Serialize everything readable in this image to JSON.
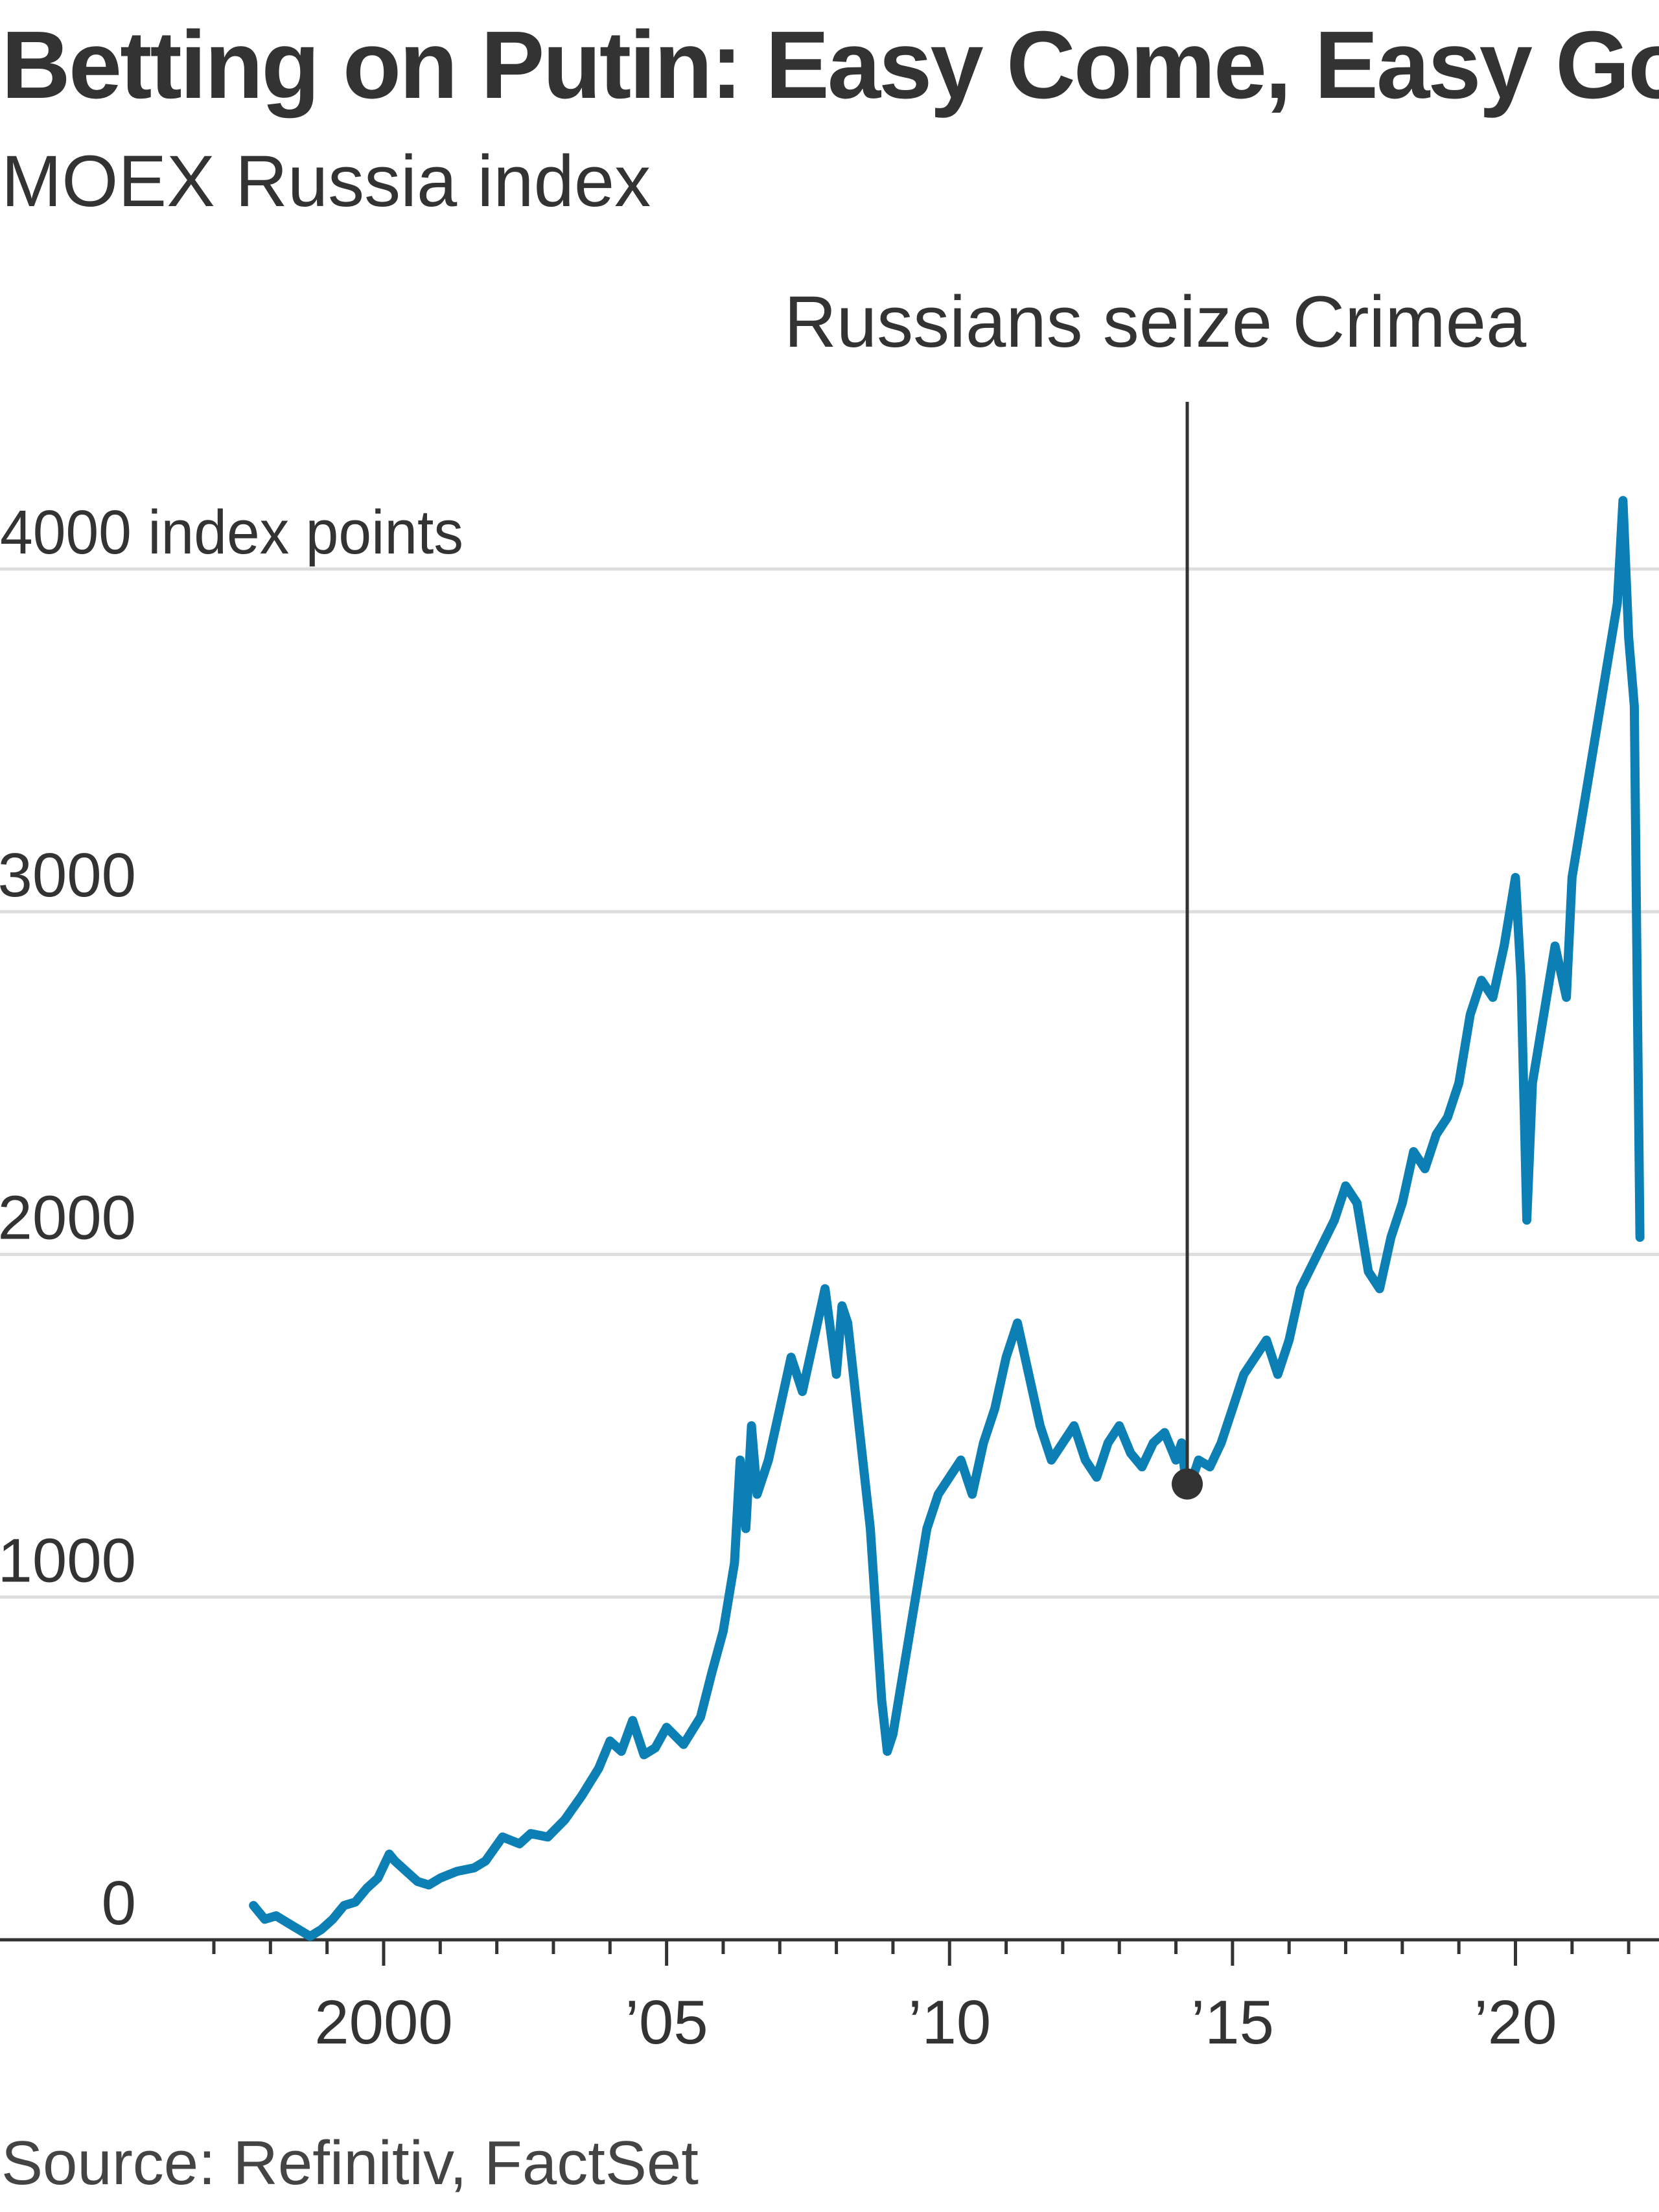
{
  "title": "Betting on Putin: Easy Come, Easy Go",
  "subtitle": "MOEX Russia index",
  "source": "Source: Refinitiv, FactSet",
  "colors": {
    "line": "#0c7fb5",
    "annotation": "#333333",
    "grid": "#dddddd"
  },
  "chart_data": {
    "type": "line",
    "title": "Betting on Putin: Easy Come, Easy Go",
    "subtitle": "MOEX Russia index",
    "ylabel": "4000 index points",
    "ylim": [
      0,
      4000
    ],
    "xlim": [
      1997.0,
      2022.25
    ],
    "grid": true,
    "y_ticks": [
      {
        "value": 0,
        "label": "0"
      },
      {
        "value": 1000,
        "label": "1000"
      },
      {
        "value": 2000,
        "label": "2000"
      },
      {
        "value": 3000,
        "label": "3000"
      },
      {
        "value": 4000,
        "label": "4000 index points"
      }
    ],
    "x_ticks": [
      {
        "value": 2000,
        "label": "2000"
      },
      {
        "value": 2005,
        "label": "’05"
      },
      {
        "value": 2010,
        "label": "’10"
      },
      {
        "value": 2015,
        "label": "’15"
      },
      {
        "value": 2020,
        "label": "’20"
      }
    ],
    "annotation": {
      "label": "Russians seize Crimea",
      "x": 2014.2,
      "y": 1330
    },
    "series": [
      {
        "x": [
          1997.7,
          1997.9,
          1998.1,
          1998.3,
          1998.5,
          1998.7,
          1998.9,
          1999.1,
          1999.3,
          1999.5,
          1999.7,
          1999.9,
          2000.1,
          2000.2,
          2000.4,
          2000.6,
          2000.8,
          2001.0,
          2001.3,
          2001.6,
          2001.8,
          2002.1,
          2002.4,
          2002.6,
          2002.9,
          2003.2,
          2003.5,
          2003.8,
          2004.0,
          2004.2,
          2004.4,
          2004.6,
          2004.8,
          2005.0,
          2005.3,
          2005.6,
          2005.8,
          2006.0,
          2006.2,
          2006.3,
          2006.4,
          2006.5,
          2006.6,
          2006.8,
          2007.0,
          2007.2,
          2007.4,
          2007.6,
          2007.8,
          2008.0,
          2008.1,
          2008.2,
          2008.4,
          2008.6,
          2008.8,
          2008.9,
          2009.0,
          2009.2,
          2009.4,
          2009.6,
          2009.8,
          2010.0,
          2010.2,
          2010.4,
          2010.6,
          2010.8,
          2011.0,
          2011.2,
          2011.4,
          2011.6,
          2011.8,
          2012.0,
          2012.2,
          2012.4,
          2012.6,
          2012.8,
          2013.0,
          2013.2,
          2013.4,
          2013.6,
          2013.8,
          2014.0,
          2014.1,
          2014.2,
          2014.4,
          2014.6,
          2014.8,
          2015.0,
          2015.2,
          2015.4,
          2015.6,
          2015.8,
          2016.0,
          2016.2,
          2016.5,
          2016.8,
          2017.0,
          2017.2,
          2017.4,
          2017.6,
          2017.8,
          2018.0,
          2018.2,
          2018.4,
          2018.6,
          2018.8,
          2019.0,
          2019.2,
          2019.4,
          2019.6,
          2019.8,
          2020.0,
          2020.1,
          2020.2,
          2020.3,
          2020.5,
          2020.7,
          2020.9,
          2021.0,
          2021.2,
          2021.4,
          2021.6,
          2021.8,
          2021.9,
          2022.0,
          2022.1,
          2022.15,
          2022.2
        ],
        "y": [
          100,
          60,
          70,
          50,
          30,
          10,
          30,
          60,
          100,
          110,
          150,
          180,
          250,
          230,
          200,
          170,
          160,
          180,
          200,
          210,
          230,
          300,
          280,
          310,
          300,
          350,
          420,
          500,
          580,
          550,
          640,
          540,
          560,
          620,
          570,
          650,
          780,
          900,
          1100,
          1400,
          1200,
          1500,
          1300,
          1400,
          1550,
          1700,
          1600,
          1750,
          1900,
          1650,
          1850,
          1800,
          1500,
          1200,
          700,
          550,
          600,
          800,
          1000,
          1200,
          1300,
          1350,
          1400,
          1300,
          1450,
          1550,
          1700,
          1800,
          1650,
          1500,
          1400,
          1450,
          1500,
          1400,
          1350,
          1450,
          1500,
          1420,
          1380,
          1450,
          1480,
          1400,
          1450,
          1300,
          1400,
          1380,
          1450,
          1550,
          1650,
          1700,
          1750,
          1650,
          1750,
          1900,
          2000,
          2100,
          2200,
          2150,
          1950,
          1900,
          2050,
          2150,
          2300,
          2250,
          2350,
          2400,
          2500,
          2700,
          2800,
          2750,
          2900,
          3100,
          2800,
          2100,
          2500,
          2700,
          2900,
          2750,
          3100,
          3300,
          3500,
          3700,
          3900,
          4200,
          3800,
          3600,
          2800,
          2050
        ]
      }
    ]
  }
}
